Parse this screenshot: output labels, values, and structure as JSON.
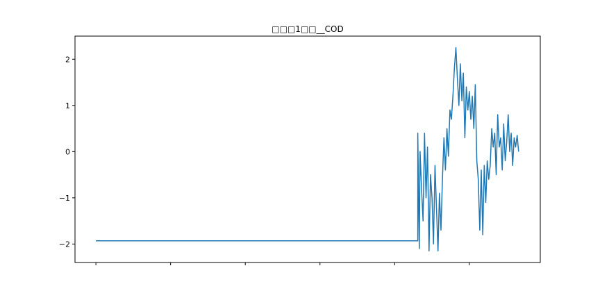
{
  "chart_data": {
    "type": "line",
    "title": "□□□1□□__COD",
    "xlabel": "",
    "ylabel": "",
    "ylim": [
      -2.4,
      2.5
    ],
    "xlim": [
      -0.28,
      5.95
    ],
    "yticks": [
      -2,
      -1,
      0,
      1,
      2
    ],
    "ytick_labels": [
      "−2",
      "−1",
      "0",
      "1",
      "2"
    ],
    "xticks": [
      0,
      1,
      2,
      3,
      4,
      5
    ],
    "xtick_labels": [
      "",
      "",
      "",
      "",
      "",
      ""
    ],
    "grid": false,
    "line_color": "#1f77b4",
    "series": [
      {
        "x": [
          0.0,
          4.31,
          4.31,
          4.33,
          4.34,
          4.36,
          4.38,
          4.4,
          4.42,
          4.44,
          4.46,
          4.48,
          4.5,
          4.52,
          4.54,
          4.56,
          4.58,
          4.6,
          4.62,
          4.64,
          4.66,
          4.68,
          4.7,
          4.72,
          4.74,
          4.76,
          4.78,
          4.8,
          4.82,
          4.84,
          4.86,
          4.88,
          4.9,
          4.92,
          4.94,
          4.96,
          4.98,
          5.0,
          5.02,
          5.04,
          5.06,
          5.08,
          5.1,
          5.12,
          5.14,
          5.16,
          5.18,
          5.2,
          5.22,
          5.24,
          5.26,
          5.28,
          5.3,
          5.32,
          5.34,
          5.36,
          5.38,
          5.4,
          5.42,
          5.44,
          5.46,
          5.48,
          5.5,
          5.52,
          5.54,
          5.56,
          5.58,
          5.6,
          5.62,
          5.64,
          5.66
        ],
        "y": [
          -1.93,
          -1.93,
          0.4,
          -2.1,
          0.0,
          -0.8,
          -1.5,
          0.4,
          -1.0,
          0.1,
          -2.15,
          -0.5,
          -1.0,
          -2.0,
          -0.3,
          -1.2,
          -2.15,
          -0.9,
          -1.7,
          -0.6,
          0.3,
          -0.4,
          0.5,
          -0.1,
          0.9,
          0.7,
          1.2,
          1.8,
          2.25,
          1.6,
          1.0,
          1.9,
          1.1,
          1.7,
          0.3,
          1.4,
          0.9,
          1.3,
          0.7,
          1.2,
          0.5,
          1.45,
          -0.2,
          -0.6,
          -1.7,
          -0.4,
          -1.8,
          -0.3,
          -1.1,
          -0.2,
          -0.6,
          -0.3,
          0.5,
          0.1,
          0.4,
          -0.5,
          0.8,
          0.1,
          0.3,
          -0.4,
          0.6,
          -0.2,
          0.2,
          0.8,
          0.0,
          0.4,
          -0.3,
          0.3,
          0.1,
          0.35,
          0.0
        ]
      }
    ]
  }
}
